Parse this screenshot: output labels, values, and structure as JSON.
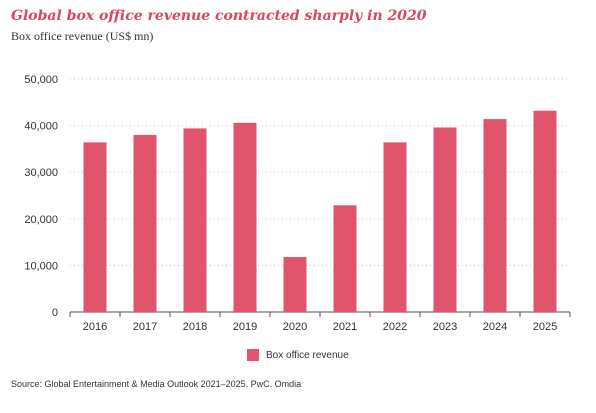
{
  "title": "Global box office revenue contracted sharply in 2020",
  "subtitle": "Box office revenue (US$ mn)",
  "source": "Source: Global Entertainment & Media Outlook 2021–2025. PwC. Omdia",
  "colors": {
    "accent": "#d9465f",
    "bar": "#e0556b"
  },
  "chart_data": {
    "type": "bar",
    "categories": [
      "2016",
      "2017",
      "2018",
      "2019",
      "2020",
      "2021",
      "2022",
      "2023",
      "2024",
      "2025"
    ],
    "series": [
      {
        "name": "Box office revenue",
        "values": [
          36400,
          38000,
          39400,
          40600,
          11800,
          22900,
          36400,
          39600,
          41400,
          43200
        ]
      }
    ],
    "ylim": [
      0,
      50000
    ],
    "yticks": [
      "0",
      "10,000",
      "20,000",
      "30,000",
      "40,000",
      "50,000"
    ],
    "grid": true,
    "legend": "bottom"
  }
}
